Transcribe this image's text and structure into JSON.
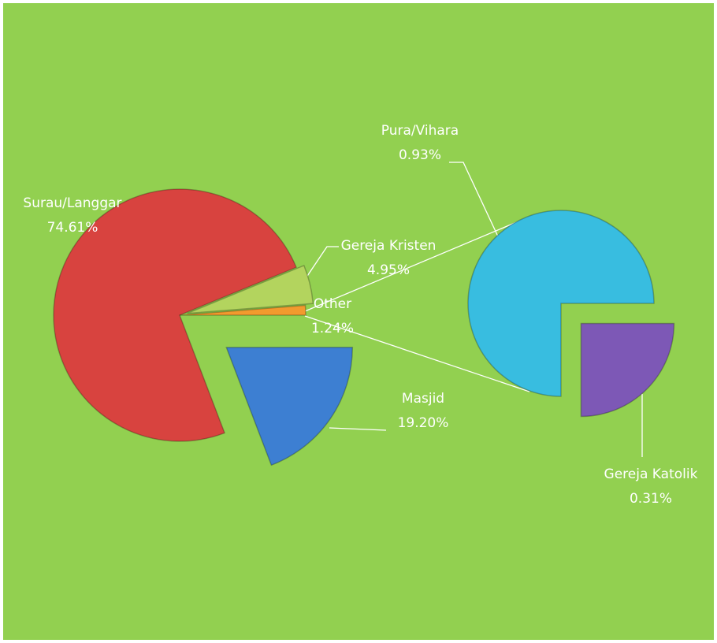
{
  "chart_data": [
    {
      "type": "pie",
      "categories": [
        "Surau/Langgar",
        "Gereja Kristen",
        "Other",
        "Masjid"
      ],
      "values": [
        74.61,
        4.95,
        1.24,
        19.2
      ],
      "value_labels": [
        "74.61%",
        "4.95%",
        "1.24%",
        "19.20%"
      ],
      "colors": [
        "#d8433f",
        "#b3d45e",
        "#f29a2e",
        "#3d7fd2"
      ]
    },
    {
      "type": "pie",
      "categories": [
        "Pura/Vihara",
        "Gereja Katolik"
      ],
      "values": [
        0.93,
        0.31
      ],
      "value_labels": [
        "0.93%",
        "0.31%"
      ],
      "colors": [
        "#38bde0",
        "#7d58b6"
      ]
    }
  ]
}
